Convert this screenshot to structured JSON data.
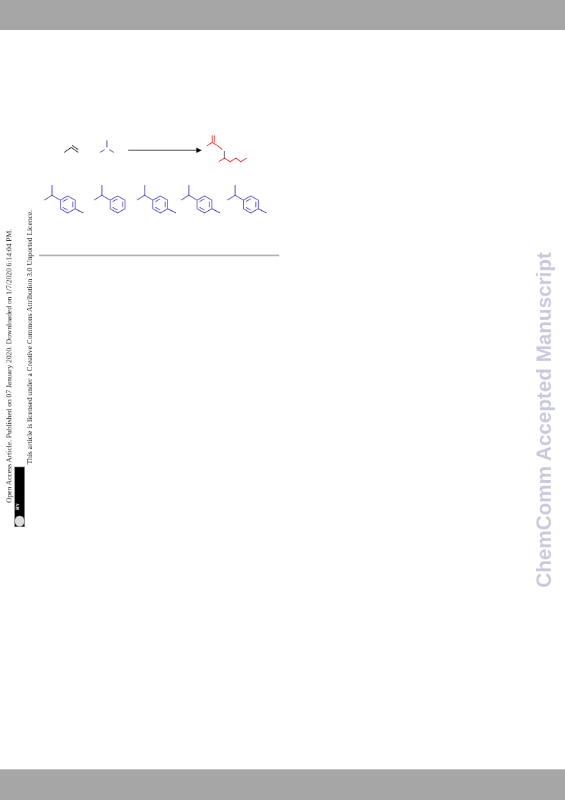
{
  "sidebar": {
    "line1": "Open Access Article. Published on 07 January 2020. Downloaded on 1/7/2020 6:14:04 PM.",
    "line2": "This article is licensed under a Creative Commons Attribution 3.0 Unported Licence.",
    "badge": "BY"
  },
  "watermark": "ChemComm Accepted Manuscript"
}
